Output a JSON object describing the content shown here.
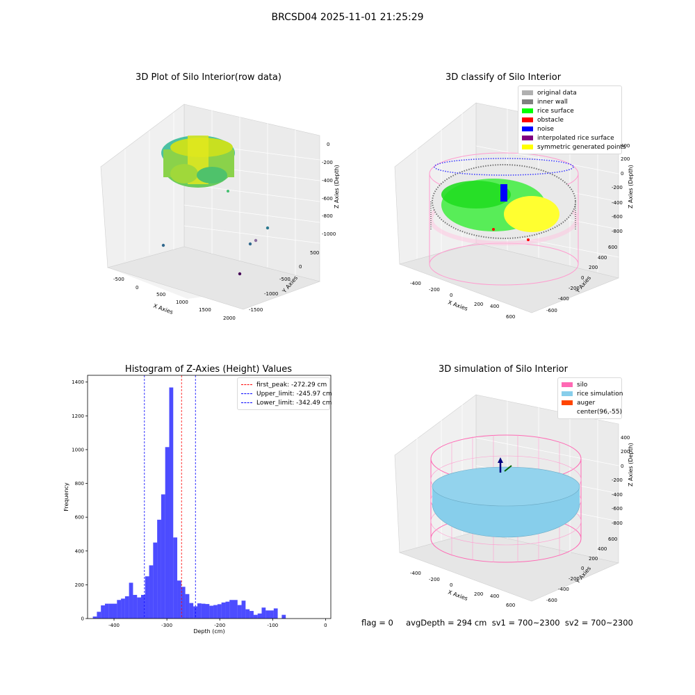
{
  "suptitle": "BRCSD04 2025-11-01 21:25:29",
  "panels": {
    "raw": {
      "title": "3D Plot of Silo Interior(row data)",
      "xlabel": "X Axies",
      "ylabel": "Y Axies",
      "zlabel": "Z Axies (Depth)",
      "xticks": [
        "-500",
        "0",
        "500",
        "1000",
        "1500",
        "2000"
      ],
      "yticks": [
        "500",
        "0",
        "-500",
        "-1000",
        "-1500"
      ],
      "zticks": [
        "0",
        "-200",
        "-400",
        "-600",
        "-800",
        "-1000"
      ]
    },
    "classify": {
      "title": "3D classify of Silo Interior",
      "xlabel": "X Axies",
      "ylabel": "Y Axies",
      "zlabel": "Z Axies (Depth)",
      "xticks": [
        "-400",
        "-200",
        "0",
        "200",
        "400",
        "600"
      ],
      "yticks": [
        "600",
        "400",
        "200",
        "0",
        "-200",
        "-400",
        "-600"
      ],
      "zticks": [
        "400",
        "200",
        "0",
        "-200",
        "-400",
        "-600",
        "-800"
      ],
      "legend": [
        {
          "label": "original data",
          "color": "#b0b0b0"
        },
        {
          "label": "inner wall",
          "color": "#808080"
        },
        {
          "label": "rice surface",
          "color": "#00ff00"
        },
        {
          "label": "obstacle",
          "color": "#ff0000"
        },
        {
          "label": "noise",
          "color": "#0000ff"
        },
        {
          "label": "interpolated rice surface",
          "color": "#800080"
        },
        {
          "label": "symmetric generated points",
          "color": "#ffff00"
        }
      ]
    },
    "sim": {
      "title": "3D simulation of Silo Interior",
      "xlabel": "X Axies",
      "ylabel": "Y Axies",
      "zlabel": "Z Axies (Depth)",
      "xticks": [
        "-400",
        "-200",
        "0",
        "200",
        "400",
        "600"
      ],
      "yticks": [
        "600",
        "400",
        "200",
        "0",
        "-200",
        "-400",
        "-600"
      ],
      "zticks": [
        "400",
        "200",
        "0",
        "-200",
        "-400",
        "-600",
        "-800"
      ],
      "legend": [
        {
          "label": "silo",
          "color": "#ff69b4"
        },
        {
          "label": "rice simulation",
          "color": "#87ceeb"
        },
        {
          "label": "auger",
          "color": "#ff4500"
        },
        {
          "label": "center(96,-55)",
          "color": "#ffffff"
        }
      ]
    }
  },
  "status_line": "flag = 0     avgDepth = 294 cm  sv1 = 700~2300  sv2 = 700~2300",
  "chart_data": {
    "type": "bar",
    "title": "Histogram of Z-Axies (Height) Values",
    "xlabel": "Depth (cm)",
    "ylabel": "Frequency",
    "xlim": [
      -450,
      10
    ],
    "ylim": [
      0,
      1440
    ],
    "xticks": [
      -400,
      -300,
      -200,
      -100,
      0
    ],
    "yticks": [
      0,
      200,
      400,
      600,
      800,
      1000,
      1200,
      1400
    ],
    "bar_color": "#0000ff",
    "bin_width": 7.6,
    "bins": [
      {
        "x": -440,
        "y": 12
      },
      {
        "x": -432.4,
        "y": 40
      },
      {
        "x": -424.8,
        "y": 78
      },
      {
        "x": -417.2,
        "y": 88
      },
      {
        "x": -409.6,
        "y": 88
      },
      {
        "x": -402,
        "y": 88
      },
      {
        "x": -394.4,
        "y": 110
      },
      {
        "x": -386.8,
        "y": 118
      },
      {
        "x": -379.2,
        "y": 132
      },
      {
        "x": -371.6,
        "y": 212
      },
      {
        "x": -364,
        "y": 140
      },
      {
        "x": -356.4,
        "y": 125
      },
      {
        "x": -348.8,
        "y": 140
      },
      {
        "x": -341.2,
        "y": 250
      },
      {
        "x": -333.6,
        "y": 315
      },
      {
        "x": -326,
        "y": 450
      },
      {
        "x": -318.4,
        "y": 585
      },
      {
        "x": -310.8,
        "y": 735
      },
      {
        "x": -303.2,
        "y": 1015
      },
      {
        "x": -295.6,
        "y": 1368
      },
      {
        "x": -288,
        "y": 480
      },
      {
        "x": -280.4,
        "y": 225
      },
      {
        "x": -272.8,
        "y": 188
      },
      {
        "x": -265.2,
        "y": 145
      },
      {
        "x": -257.6,
        "y": 92
      },
      {
        "x": -250,
        "y": 72
      },
      {
        "x": -242.4,
        "y": 90
      },
      {
        "x": -234.8,
        "y": 88
      },
      {
        "x": -227.2,
        "y": 86
      },
      {
        "x": -219.6,
        "y": 76
      },
      {
        "x": -212,
        "y": 80
      },
      {
        "x": -204.4,
        "y": 85
      },
      {
        "x": -196.8,
        "y": 95
      },
      {
        "x": -189.2,
        "y": 100
      },
      {
        "x": -181.6,
        "y": 110
      },
      {
        "x": -174,
        "y": 110
      },
      {
        "x": -166.4,
        "y": 80
      },
      {
        "x": -158.8,
        "y": 106
      },
      {
        "x": -151.2,
        "y": 55
      },
      {
        "x": -143.6,
        "y": 45
      },
      {
        "x": -136,
        "y": 22
      },
      {
        "x": -128.4,
        "y": 30
      },
      {
        "x": -120.8,
        "y": 65
      },
      {
        "x": -113.2,
        "y": 48
      },
      {
        "x": -105.6,
        "y": 48
      },
      {
        "x": -98,
        "y": 60
      },
      {
        "x": -90.4,
        "y": 0
      },
      {
        "x": -82.8,
        "y": 22
      }
    ],
    "vlines": [
      {
        "label": "first_peak: -272.29 cm",
        "x": -272.29,
        "color": "#ff0000"
      },
      {
        "label": "Upper_limit: -245.97 cm",
        "x": -245.97,
        "color": "#0000ff"
      },
      {
        "label": "Lower_limit: -342.49 cm",
        "x": -342.49,
        "color": "#0000ff"
      }
    ]
  }
}
